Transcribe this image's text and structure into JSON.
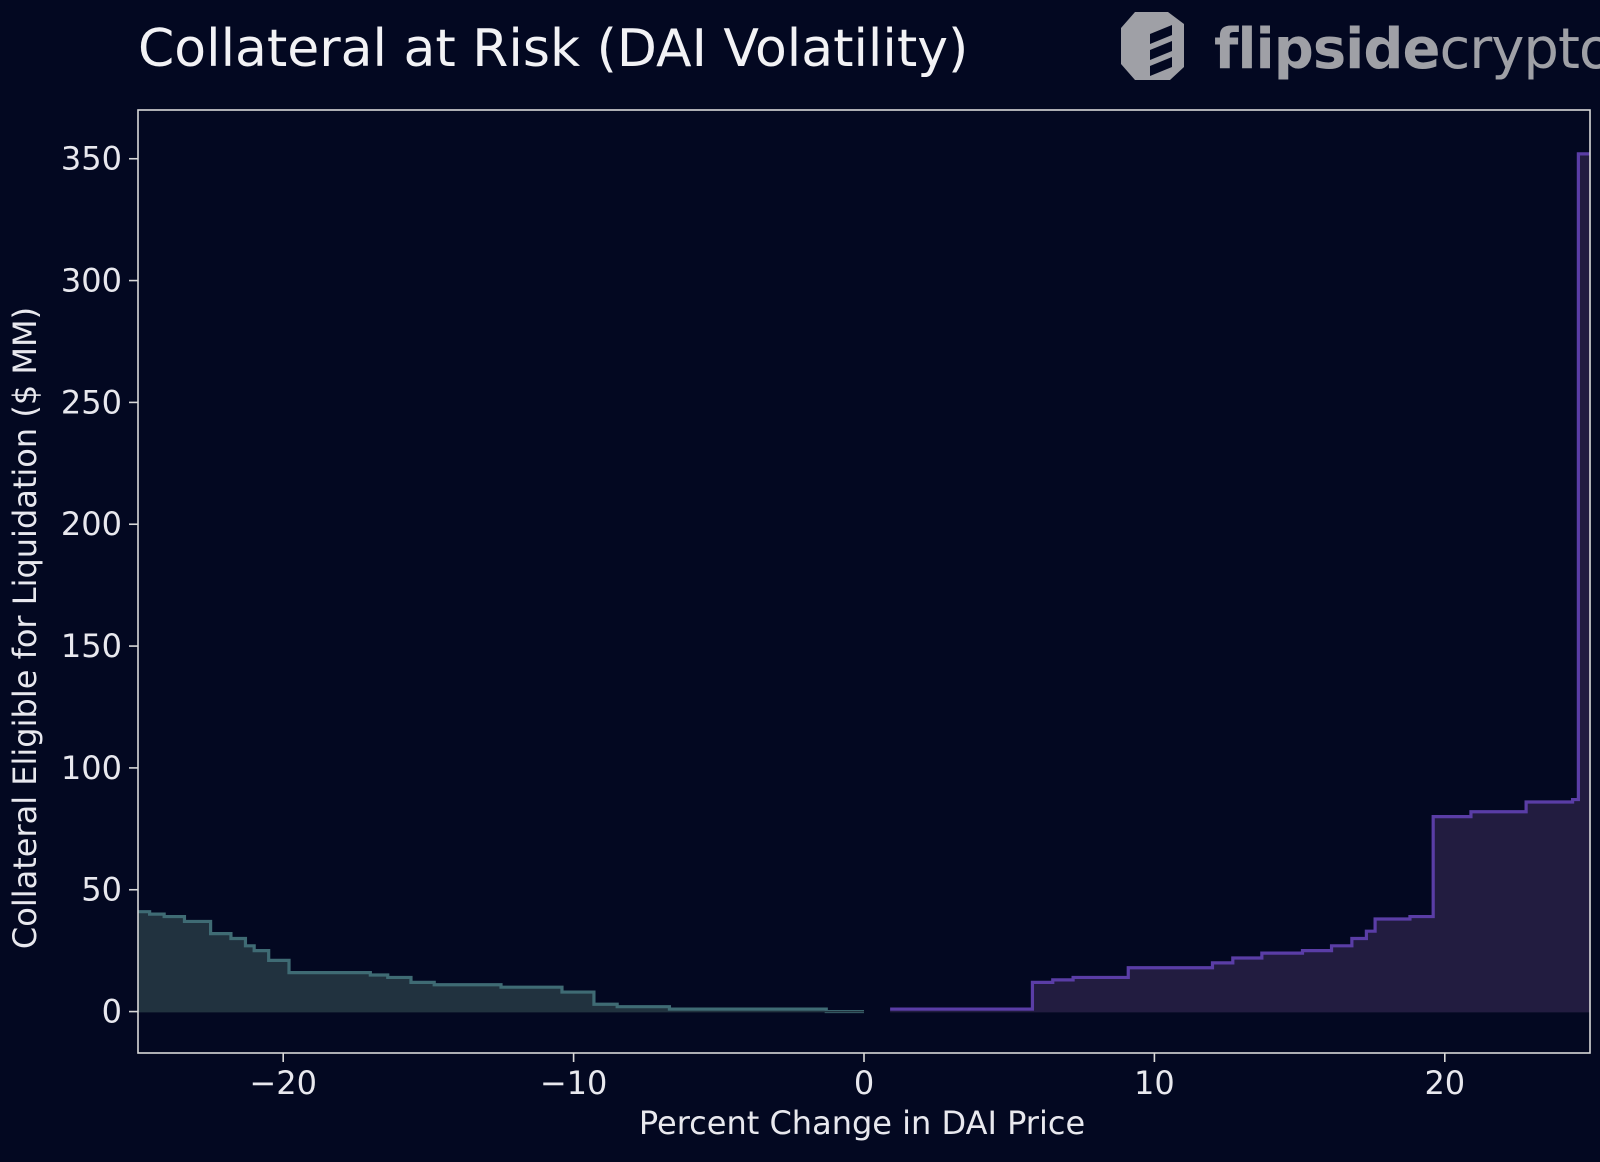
{
  "header": {
    "logo": {
      "icon": "flipside-logo-icon",
      "word_bold": "flipside",
      "word_light": "crypto"
    }
  },
  "colors": {
    "background": "#030821",
    "axis": "#d8d8d8",
    "text": "#e8e8ee",
    "negative_line": "#3f6b74",
    "negative_fill": "#21323f",
    "positive_line": "#5a3da6",
    "positive_fill": "#221c40",
    "logo": "#9fa0a6"
  },
  "chart_data": {
    "type": "area",
    "title": "Collateral at Risk (DAI Volatility)",
    "xlabel": "Percent Change in DAI Price",
    "ylabel": "Collateral Eligible for Liquidation ($ MM)",
    "xlim": [
      -25,
      25
    ],
    "ylim": [
      -17,
      370
    ],
    "x_ticks": [
      -20,
      -10,
      0,
      10,
      20
    ],
    "x_tick_labels": [
      "−20",
      "−10",
      "0",
      "10",
      "20"
    ],
    "y_ticks": [
      0,
      50,
      100,
      150,
      200,
      250,
      300,
      350
    ],
    "y_tick_labels": [
      "0",
      "50",
      "100",
      "150",
      "200",
      "250",
      "300",
      "350"
    ],
    "grid": false,
    "legend": "none",
    "series": [
      {
        "step": "post",
        "x": [
          -25,
          -24.6,
          -24.1,
          -23.4,
          -22.5,
          -21.8,
          -21.3,
          -21.0,
          -20.5,
          -19.8,
          -17.5,
          -17.0,
          -16.4,
          -15.6,
          -14.8,
          -13.4,
          -12.5,
          -11.3,
          -10.4,
          -10.0,
          -9.3,
          -8.5,
          -6.7,
          -6.0,
          -1.7,
          -1.3,
          0
        ],
        "y": [
          41,
          40,
          39,
          37,
          32,
          30,
          27,
          25,
          21,
          16,
          16,
          15,
          14,
          12,
          11,
          11,
          10,
          10,
          8,
          8,
          3,
          2,
          1,
          1,
          1,
          0,
          0
        ]
      },
      {
        "step": "post",
        "x": [
          0.9,
          5.8,
          6.5,
          7.2,
          9.1,
          12.0,
          12.7,
          13.7,
          15.1,
          16.1,
          16.8,
          17.3,
          17.6,
          18.8,
          19.6,
          20.9,
          22.2,
          22.8,
          24.4,
          24.6,
          25
        ],
        "y": [
          1,
          12,
          13,
          14,
          18,
          20,
          22,
          24,
          25,
          27,
          30,
          33,
          38,
          39,
          80,
          82,
          82,
          86,
          87,
          352,
          352
        ]
      }
    ]
  }
}
